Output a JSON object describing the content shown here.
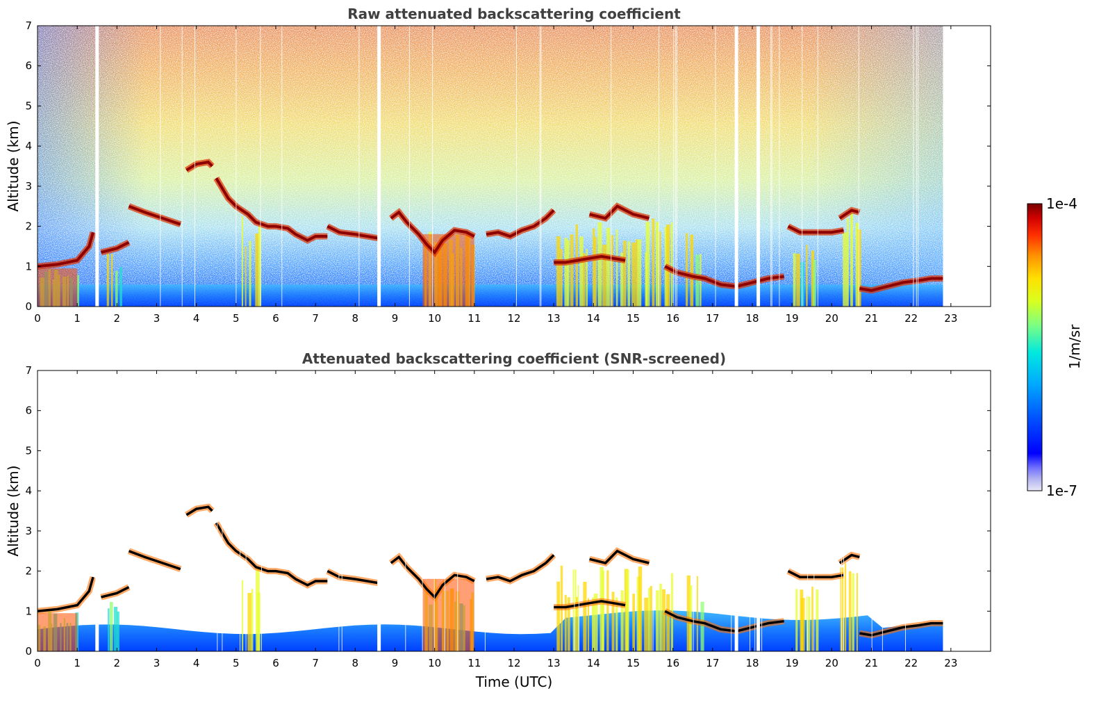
{
  "chart_data": [
    {
      "type": "heatmap",
      "title": "Raw attenuated backscattering coefficient",
      "xlabel": "",
      "ylabel": "Altitude (km)",
      "xlim": [
        0,
        24
      ],
      "ylim": [
        0,
        7
      ],
      "xticks": [
        "0",
        "1",
        "2",
        "3",
        "4",
        "5",
        "6",
        "7",
        "8",
        "9",
        "10",
        "11",
        "12",
        "13",
        "14",
        "15",
        "16",
        "17",
        "18",
        "19",
        "20",
        "21",
        "22",
        "23"
      ],
      "yticks": [
        "0",
        "1",
        "2",
        "3",
        "4",
        "5",
        "6",
        "7"
      ],
      "data_end_time": 22.8,
      "missing_profiles": [
        1.5,
        8.6,
        17.6,
        18.15
      ],
      "cloud_layers": [
        {
          "t": [
            0.0,
            0.5,
            1.0,
            1.3,
            1.4
          ],
          "alt": [
            1.0,
            1.05,
            1.15,
            1.5,
            1.85
          ]
        },
        {
          "t": [
            1.6,
            2.0,
            2.3
          ],
          "alt": [
            1.35,
            1.45,
            1.6
          ]
        },
        {
          "t": [
            2.3,
            2.7,
            3.0,
            3.3,
            3.6
          ],
          "alt": [
            2.5,
            2.35,
            2.25,
            2.15,
            2.05
          ]
        },
        {
          "t": [
            3.75,
            4.0,
            4.3,
            4.4
          ],
          "alt": [
            3.4,
            3.55,
            3.6,
            3.5
          ]
        },
        {
          "t": [
            4.5,
            4.8,
            5.0,
            5.3,
            5.5,
            5.8,
            6.0,
            6.3,
            6.5,
            6.8,
            7.0,
            7.3
          ],
          "alt": [
            3.2,
            2.7,
            2.5,
            2.3,
            2.1,
            2.0,
            2.0,
            1.95,
            1.8,
            1.65,
            1.75,
            1.75
          ]
        },
        {
          "t": [
            7.3,
            7.6,
            8.0,
            8.3,
            8.6
          ],
          "alt": [
            2.0,
            1.85,
            1.8,
            1.75,
            1.7
          ]
        },
        {
          "t": [
            8.9,
            9.1,
            9.3,
            9.6,
            9.8,
            10.0,
            10.2,
            10.5,
            10.8,
            11.0
          ],
          "alt": [
            2.2,
            2.35,
            2.1,
            1.8,
            1.55,
            1.35,
            1.65,
            1.9,
            1.85,
            1.75
          ]
        },
        {
          "t": [
            11.3,
            11.6,
            11.9,
            12.2,
            12.5,
            12.8,
            13.0
          ],
          "alt": [
            1.8,
            1.85,
            1.75,
            1.9,
            2.0,
            2.2,
            2.4
          ]
        },
        {
          "t": [
            13.0,
            13.3,
            13.6,
            13.9,
            14.2,
            14.5,
            14.8
          ],
          "alt": [
            1.1,
            1.1,
            1.15,
            1.2,
            1.25,
            1.2,
            1.15
          ]
        },
        {
          "t": [
            13.9,
            14.3,
            14.6,
            15.0,
            15.4
          ],
          "alt": [
            2.3,
            2.2,
            2.5,
            2.3,
            2.2
          ]
        },
        {
          "t": [
            15.8,
            16.1,
            16.5,
            16.8,
            17.2,
            17.6,
            18.0,
            18.4,
            18.8
          ],
          "alt": [
            1.0,
            0.85,
            0.75,
            0.7,
            0.55,
            0.5,
            0.6,
            0.7,
            0.75
          ]
        },
        {
          "t": [
            18.9,
            19.2,
            19.6,
            20.0,
            20.3
          ],
          "alt": [
            2.0,
            1.85,
            1.85,
            1.85,
            1.9
          ]
        },
        {
          "t": [
            20.2,
            20.5,
            20.7
          ],
          "alt": [
            2.2,
            2.4,
            2.35
          ]
        },
        {
          "t": [
            20.7,
            21.0,
            21.4,
            21.8,
            22.2,
            22.5,
            22.8
          ],
          "alt": [
            0.45,
            0.4,
            0.5,
            0.6,
            0.65,
            0.7,
            0.7
          ]
        }
      ]
    },
    {
      "type": "heatmap",
      "title": "Attenuated backscattering coefficient (SNR-screened)",
      "xlabel": "Time (UTC)",
      "ylabel": "Altitude (km)",
      "xlim": [
        0,
        24
      ],
      "ylim": [
        0,
        7
      ],
      "xticks": [
        "0",
        "1",
        "2",
        "3",
        "4",
        "5",
        "6",
        "7",
        "8",
        "9",
        "10",
        "11",
        "12",
        "13",
        "14",
        "15",
        "16",
        "17",
        "18",
        "19",
        "20",
        "21",
        "22",
        "23"
      ],
      "yticks": [
        "0",
        "1",
        "2",
        "3",
        "4",
        "5",
        "6",
        "7"
      ]
    }
  ],
  "colorbar": {
    "label": "1/m/sr",
    "max_label": "1e-4",
    "min_label": "1e-7",
    "scale": "log",
    "colors": [
      "#e8e8f8",
      "#b4b4f0",
      "#7070ff",
      "#0000ff",
      "#0050ff",
      "#00a8ff",
      "#00e8e0",
      "#80ff80",
      "#d8ff20",
      "#ffe000",
      "#ff9000",
      "#ff3000",
      "#d00000",
      "#780000"
    ]
  }
}
